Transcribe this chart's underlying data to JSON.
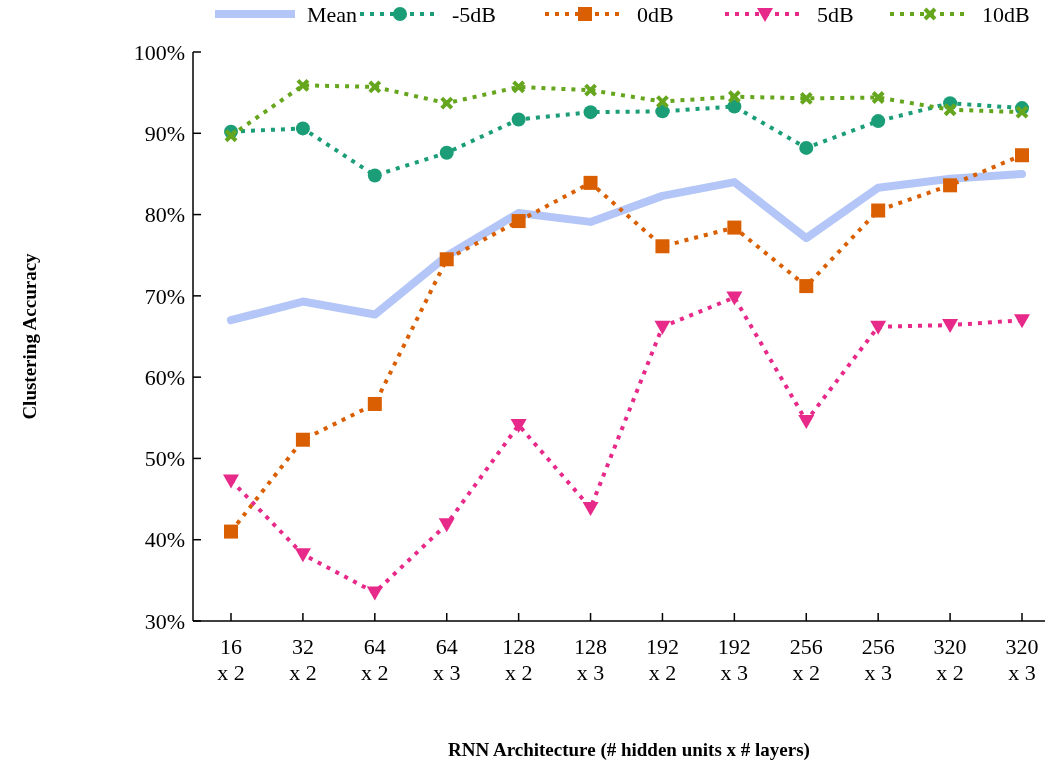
{
  "chart_data": {
    "type": "line",
    "xlabel": "RNN Architecture (# hidden units x # layers)",
    "ylabel": "Clustering Accuracy",
    "categories": [
      "16 x 2",
      "32 x 2",
      "64 x 2",
      "64 x 3",
      "128 x 2",
      "128 x 3",
      "192 x 2",
      "192 x 3",
      "256 x 2",
      "256 x 3",
      "320 x 2",
      "320 x 3"
    ],
    "ylim": [
      30,
      100
    ],
    "yticks": [
      {
        "value": 30,
        "label": "30%"
      },
      {
        "value": 40,
        "label": "40%"
      },
      {
        "value": 50,
        "label": "50%"
      },
      {
        "value": 60,
        "label": "60%"
      },
      {
        "value": 70,
        "label": "70%"
      },
      {
        "value": 80,
        "label": "80%"
      },
      {
        "value": 90,
        "label": "90%"
      },
      {
        "value": 100,
        "label": "100%"
      }
    ],
    "grid": false,
    "legend": "top",
    "series": [
      {
        "name": "Mean",
        "color": "#b3c6f7",
        "marker": "none",
        "line_style": "solid",
        "values": [
          67.0,
          69.3,
          67.7,
          74.9,
          80.2,
          79.1,
          82.3,
          84.0,
          77.1,
          83.3,
          84.4,
          85.0
        ]
      },
      {
        "name": "-5dB",
        "color": "#1b9e77",
        "marker": "circle",
        "line_style": "dotted",
        "values": [
          90.2,
          90.6,
          84.8,
          87.6,
          91.7,
          92.6,
          92.7,
          93.3,
          88.2,
          91.5,
          93.7,
          93.1
        ]
      },
      {
        "name": "0dB",
        "color": "#d95f02",
        "marker": "square",
        "line_style": "dotted",
        "values": [
          41.0,
          52.3,
          56.7,
          74.5,
          79.2,
          83.9,
          76.1,
          78.4,
          71.2,
          80.5,
          83.6,
          87.3
        ]
      },
      {
        "name": "5dB",
        "color": "#e7298a",
        "marker": "triangle",
        "line_style": "dotted",
        "values": [
          47.3,
          38.2,
          33.5,
          41.9,
          54.1,
          43.9,
          66.2,
          69.8,
          54.6,
          66.2,
          66.4,
          67.0
        ]
      },
      {
        "name": "10dB",
        "color": "#66a61e",
        "marker": "cross",
        "line_style": "dotted",
        "values": [
          89.7,
          95.9,
          95.7,
          93.7,
          95.7,
          95.3,
          93.9,
          94.5,
          94.3,
          94.4,
          92.9,
          92.6
        ]
      }
    ]
  }
}
